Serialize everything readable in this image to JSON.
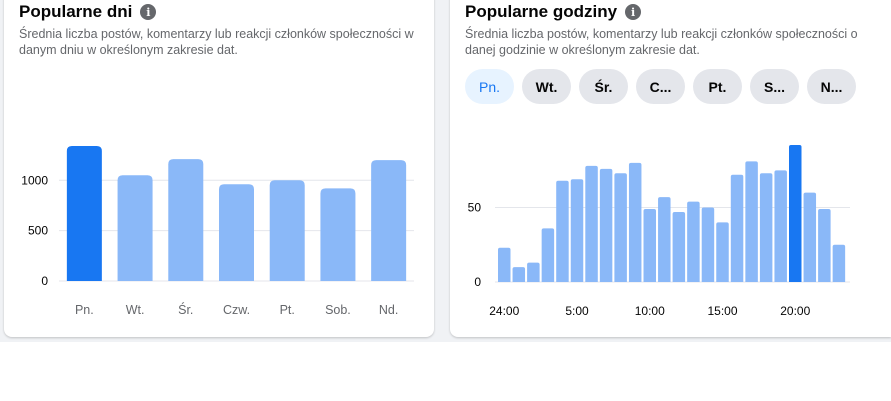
{
  "days_card": {
    "title": "Popularne dni",
    "info_icon": "info-icon",
    "subtitle": "Średnia liczba postów, komentarzy lub reakcji członków społeczności w danym dniu w określonym zakresie dat."
  },
  "hours_card": {
    "title": "Popularne godziny",
    "info_icon": "info-icon",
    "subtitle": "Średnia liczba postów, komentarzy lub reakcji członków społeczności o danej godzinie w określonym zakresie dat.",
    "tabs": [
      {
        "label": "Pn.",
        "active": true
      },
      {
        "label": "Wt.",
        "active": false
      },
      {
        "label": "Śr.",
        "active": false
      },
      {
        "label": "C...",
        "active": false
      },
      {
        "label": "Pt.",
        "active": false
      },
      {
        "label": "S...",
        "active": false
      },
      {
        "label": "N...",
        "active": false
      }
    ]
  },
  "colors": {
    "highlight": "#1877f2",
    "bar": "#8ab8f8",
    "grid": "#e4e6eb",
    "tab_active_bg": "#e7f3ff",
    "tab_bg": "#e4e6eb"
  },
  "chart_data": [
    {
      "type": "bar",
      "categories": [
        "Pn.",
        "Wt.",
        "Śr.",
        "Czw.",
        "Pt.",
        "Sob.",
        "Nd."
      ],
      "values": [
        1340,
        1050,
        1210,
        960,
        1000,
        920,
        1200
      ],
      "highlight_index": 0,
      "yticks": [
        0,
        500,
        1000
      ],
      "ylim": [
        0,
        1350
      ],
      "grid": true
    },
    {
      "type": "bar",
      "x_tick_labels": [
        "24:00",
        "5:00",
        "10:00",
        "15:00",
        "20:00"
      ],
      "x_tick_positions": [
        0,
        5,
        10,
        15,
        20
      ],
      "values": [
        23,
        10,
        13,
        36,
        68,
        69,
        78,
        76,
        73,
        80,
        49,
        57,
        47,
        54,
        50,
        40,
        72,
        81,
        73,
        75,
        92,
        60,
        49,
        25
      ],
      "highlight_index": 20,
      "yticks": [
        0,
        50
      ],
      "ylim": [
        0,
        92
      ],
      "grid": true
    }
  ]
}
